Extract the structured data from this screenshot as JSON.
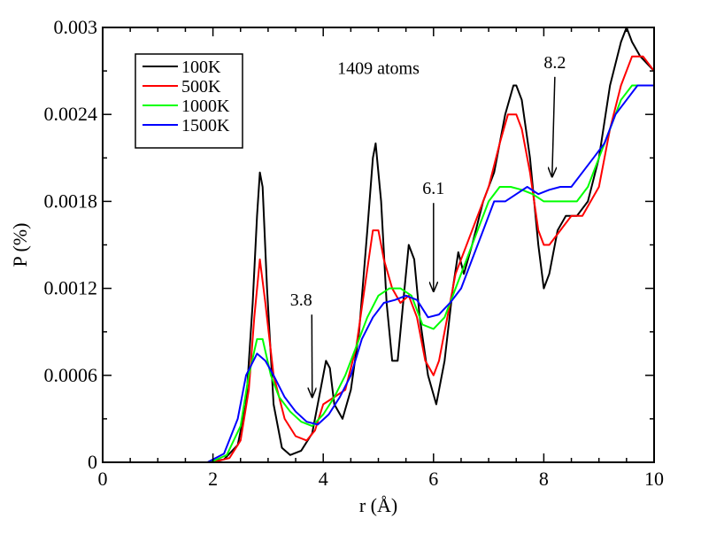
{
  "chart_data": {
    "type": "line",
    "title": "",
    "xlabel": "r (Å)",
    "ylabel": "P (%)",
    "xlim": [
      0,
      10
    ],
    "ylim": [
      0,
      0.003
    ],
    "x_ticks": [
      0,
      2,
      4,
      6,
      8,
      10
    ],
    "x_tick_labels": [
      "0",
      "2",
      "4",
      "6",
      "8",
      "10"
    ],
    "y_ticks": [
      0,
      0.0006,
      0.0012,
      0.0018,
      0.0024,
      0.003
    ],
    "y_tick_labels": [
      "0",
      "0.0006",
      "0.0012",
      "0.0018",
      "0.0024",
      "0.003"
    ],
    "grid": false,
    "legend_position": "top-left",
    "series": [
      {
        "name": "100K",
        "color": "#000000",
        "x": [
          1.9,
          2.2,
          2.45,
          2.6,
          2.72,
          2.8,
          2.85,
          2.9,
          2.98,
          3.1,
          3.25,
          3.4,
          3.6,
          3.8,
          3.95,
          4.05,
          4.12,
          4.2,
          4.35,
          4.5,
          4.65,
          4.8,
          4.9,
          4.95,
          5.05,
          5.15,
          5.25,
          5.35,
          5.45,
          5.55,
          5.65,
          5.75,
          5.9,
          6.05,
          6.2,
          6.35,
          6.45,
          6.55,
          6.7,
          6.9,
          7.1,
          7.3,
          7.45,
          7.5,
          7.6,
          7.75,
          7.9,
          8.0,
          8.1,
          8.25,
          8.4,
          8.6,
          8.8,
          9.0,
          9.2,
          9.4,
          9.5,
          9.6,
          9.75,
          10.0
        ],
        "y": [
          0,
          2e-05,
          0.00012,
          0.0004,
          0.0011,
          0.0017,
          0.002,
          0.0019,
          0.0012,
          0.0004,
          0.0001,
          5e-05,
          8e-05,
          0.0002,
          0.0005,
          0.0007,
          0.00065,
          0.0004,
          0.0003,
          0.0005,
          0.0009,
          0.0016,
          0.0021,
          0.0022,
          0.0018,
          0.0011,
          0.0007,
          0.0007,
          0.0011,
          0.0015,
          0.0014,
          0.001,
          0.0006,
          0.0004,
          0.0007,
          0.0012,
          0.00145,
          0.0013,
          0.0015,
          0.0018,
          0.002,
          0.0024,
          0.0026,
          0.0026,
          0.0025,
          0.0021,
          0.0015,
          0.0012,
          0.0013,
          0.0016,
          0.0017,
          0.0017,
          0.0018,
          0.0021,
          0.0026,
          0.0029,
          0.003,
          0.0029,
          0.0028,
          0.0027
        ]
      },
      {
        "name": "500K",
        "color": "#ff0000",
        "x": [
          2.0,
          2.3,
          2.5,
          2.65,
          2.75,
          2.85,
          2.95,
          3.1,
          3.3,
          3.5,
          3.7,
          3.85,
          4.0,
          4.2,
          4.4,
          4.6,
          4.75,
          4.9,
          5.0,
          5.1,
          5.25,
          5.4,
          5.55,
          5.7,
          5.85,
          6.0,
          6.1,
          6.25,
          6.4,
          6.6,
          6.8,
          7.0,
          7.2,
          7.35,
          7.5,
          7.6,
          7.75,
          7.9,
          8.0,
          8.1,
          8.3,
          8.5,
          8.7,
          9.0,
          9.2,
          9.4,
          9.6,
          9.8,
          10.0
        ],
        "y": [
          0,
          3e-05,
          0.00015,
          0.0005,
          0.001,
          0.0014,
          0.0011,
          0.0006,
          0.0003,
          0.00018,
          0.00015,
          0.00022,
          0.0004,
          0.00045,
          0.0005,
          0.0008,
          0.0012,
          0.0016,
          0.0016,
          0.0014,
          0.0012,
          0.0011,
          0.00115,
          0.001,
          0.0007,
          0.0006,
          0.0007,
          0.001,
          0.0013,
          0.0015,
          0.0017,
          0.0019,
          0.0022,
          0.0024,
          0.0024,
          0.0023,
          0.002,
          0.0016,
          0.0015,
          0.0015,
          0.0016,
          0.0017,
          0.0017,
          0.0019,
          0.0023,
          0.0026,
          0.0028,
          0.0028,
          0.0027
        ]
      },
      {
        "name": "1000K",
        "color": "#00ff00",
        "x": [
          1.95,
          2.25,
          2.5,
          2.65,
          2.8,
          2.9,
          3.05,
          3.2,
          3.4,
          3.6,
          3.8,
          4.0,
          4.2,
          4.4,
          4.6,
          4.8,
          5.0,
          5.2,
          5.4,
          5.6,
          5.8,
          6.0,
          6.2,
          6.4,
          6.6,
          6.8,
          7.0,
          7.2,
          7.4,
          7.6,
          7.8,
          8.0,
          8.2,
          8.4,
          8.6,
          8.8,
          9.0,
          9.2,
          9.4,
          9.6,
          9.8,
          10.0
        ],
        "y": [
          0,
          5e-05,
          0.00025,
          0.0006,
          0.00085,
          0.00085,
          0.0006,
          0.00045,
          0.00035,
          0.00028,
          0.00025,
          0.00033,
          0.00045,
          0.0006,
          0.0008,
          0.001,
          0.00115,
          0.0012,
          0.0012,
          0.00115,
          0.00095,
          0.00092,
          0.001,
          0.0012,
          0.0014,
          0.0016,
          0.0018,
          0.0019,
          0.0019,
          0.00188,
          0.00185,
          0.0018,
          0.0018,
          0.0018,
          0.0018,
          0.0019,
          0.0021,
          0.0023,
          0.0025,
          0.0026,
          0.0026,
          0.0026
        ]
      },
      {
        "name": "1500K",
        "color": "#0000ff",
        "x": [
          1.9,
          2.2,
          2.45,
          2.6,
          2.8,
          2.95,
          3.1,
          3.3,
          3.5,
          3.7,
          3.9,
          4.1,
          4.3,
          4.5,
          4.7,
          4.9,
          5.1,
          5.3,
          5.5,
          5.7,
          5.9,
          6.1,
          6.3,
          6.5,
          6.7,
          6.9,
          7.1,
          7.3,
          7.5,
          7.7,
          7.9,
          8.1,
          8.3,
          8.5,
          8.7,
          8.9,
          9.1,
          9.3,
          9.5,
          9.7,
          10.0
        ],
        "y": [
          0,
          6e-05,
          0.0003,
          0.0006,
          0.00075,
          0.0007,
          0.0006,
          0.00045,
          0.00035,
          0.00028,
          0.00026,
          0.00033,
          0.00045,
          0.0006,
          0.00085,
          0.001,
          0.0011,
          0.00112,
          0.00115,
          0.00112,
          0.001,
          0.00102,
          0.0011,
          0.0012,
          0.0014,
          0.0016,
          0.0018,
          0.0018,
          0.00185,
          0.0019,
          0.00185,
          0.00188,
          0.0019,
          0.0019,
          0.002,
          0.0021,
          0.0022,
          0.0024,
          0.0025,
          0.0026,
          0.0026
        ]
      }
    ],
    "annotations": [
      {
        "text": "1409 atoms",
        "x": 5.0,
        "y": 0.00268,
        "arrow_to": null
      },
      {
        "text": "3.8",
        "x": 3.6,
        "y": 0.00108,
        "arrow_to": [
          3.8,
          0.00045
        ]
      },
      {
        "text": "6.1",
        "x": 6.0,
        "y": 0.00185,
        "arrow_to": [
          6.0,
          0.00118
        ]
      },
      {
        "text": "8.2",
        "x": 8.2,
        "y": 0.00272,
        "arrow_to": [
          8.15,
          0.00197
        ]
      }
    ]
  }
}
